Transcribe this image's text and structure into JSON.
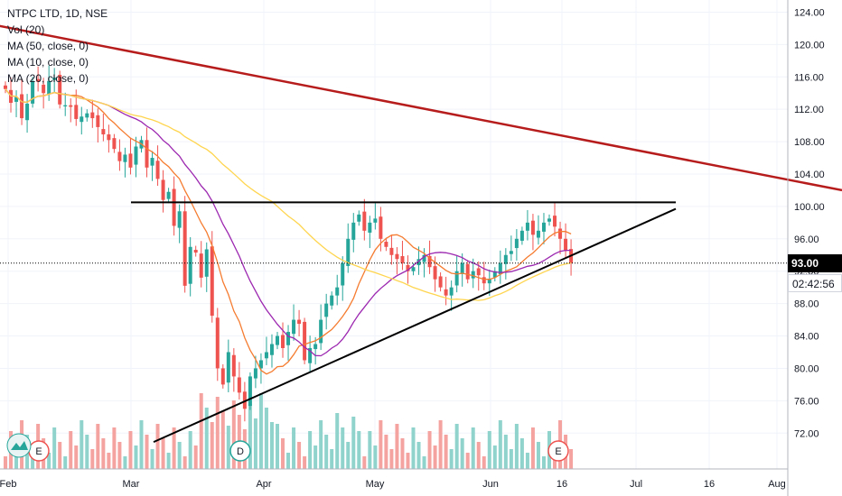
{
  "legend": {
    "symbol": "NTPC LTD, 1D, NSE",
    "vol": "Vol (20)",
    "ma50": "MA (50, close, 0)",
    "ma10": "MA (10, close, 0)",
    "ma20": "MA (20, close, 0)"
  },
  "price_badge": {
    "last": "93.00",
    "countdown": "02:42:56",
    "color": "#000000",
    "countdown_color": "#131722"
  },
  "event_markers": [
    {
      "label": "E"
    },
    {
      "label": "D"
    },
    {
      "label": "E"
    }
  ],
  "colors": {
    "up": "#26a69a",
    "down": "#ef5350",
    "up_vol": "#8fd3cc",
    "down_vol": "#f5a3a1",
    "ma10": "#f57c30",
    "ma20": "#9c27b0",
    "ma50": "#ffd54f",
    "trend_red": "#b71c1c",
    "lines": "#000000"
  },
  "chart_data": {
    "type": "candlestick",
    "title": "NTPC LTD, 1D, NSE",
    "y_axis": {
      "ticks": [
        "124.00",
        "120.00",
        "116.00",
        "112.00",
        "108.00",
        "104.00",
        "100.00",
        "96.00",
        "92.00",
        "88.00",
        "84.00",
        "80.00",
        "76.00",
        "72.00"
      ],
      "ylim": [
        69.8,
        125.5
      ]
    },
    "x_axis": {
      "ticks": [
        "Feb",
        "Mar",
        "Apr",
        "May",
        "Jun",
        "16",
        "Jul",
        "16",
        "Aug"
      ]
    },
    "last_price": 93.0,
    "closes": [
      114.5,
      112.8,
      113.5,
      110.9,
      112.7,
      115.5,
      115.4,
      114.0,
      115.5,
      115.9,
      112.6,
      112.5,
      112.3,
      110.8,
      111.1,
      111.5,
      110.9,
      109.8,
      108.9,
      108.2,
      107.1,
      105.6,
      106.4,
      104.8,
      107.4,
      108.2,
      104.8,
      106.0,
      103.4,
      100.8,
      101.8,
      97.6,
      99.4,
      90.2,
      95.0,
      94.3,
      91.2,
      94.7,
      86.5,
      80.0,
      78.0,
      82.0,
      79.0,
      77.0,
      75.0,
      79.0,
      80.0,
      81.0,
      82.0,
      83.0,
      84.0,
      82.5,
      84.5,
      86.0,
      85.5,
      81.0,
      82.5,
      83.0,
      86.0,
      88.0,
      89.0,
      90.0,
      93.0,
      96.0,
      98.0,
      99.0,
      97.0,
      98.0,
      98.5,
      96.0,
      95.0,
      94.0,
      93.5,
      93.0,
      92.0,
      92.5,
      93.5,
      94.0,
      92.5,
      91.0,
      90.0,
      89.0,
      90.0,
      92.0,
      93.0,
      91.0,
      92.0,
      91.5,
      90.5,
      91.0,
      92.0,
      93.0,
      94.0,
      94.5,
      96.0,
      97.0,
      98.0,
      96.5,
      97.0,
      98.0,
      98.5,
      97.5,
      96.0,
      94.5,
      93.0
    ],
    "moving_averages": [
      {
        "name": "MA (10, close, 0)",
        "color": "#f57c30"
      },
      {
        "name": "MA (20, close, 0)",
        "color": "#9c27b0"
      },
      {
        "name": "MA (50, close, 0)",
        "color": "#ffd54f"
      }
    ],
    "trendlines": [
      {
        "kind": "descending_resistance",
        "color": "#b71c1c",
        "from": {
          "date": "Jan 29",
          "price": 122.5
        },
        "to": {
          "date": "Aug 6",
          "price": 102.0
        }
      },
      {
        "kind": "horizontal_resistance",
        "color": "#000000",
        "from": {
          "date": "Mar 1",
          "price": 100.5
        },
        "to": {
          "date": "Jul 10",
          "price": 100.5
        }
      },
      {
        "kind": "ascending_support",
        "color": "#000000",
        "from": {
          "date": "Mar 3",
          "price": 70.9
        },
        "to": {
          "date": "Jul 10",
          "price": 99.7
        }
      }
    ],
    "legend_position": "top-left",
    "grid": true
  }
}
